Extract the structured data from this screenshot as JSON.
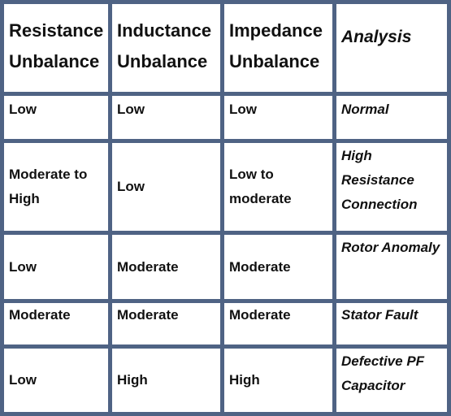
{
  "table": {
    "headers": [
      "Resistance Unbalance",
      "Inductance Unbalance",
      "Impedance Unbalance",
      "Analysis"
    ],
    "rows": [
      [
        "Low",
        "Low",
        "Low",
        "Normal"
      ],
      [
        "Moderate to High",
        "Low",
        "Low to moderate",
        "High Resistance Connection"
      ],
      [
        "Low",
        "Moderate",
        "Moderate",
        "Rotor Anomaly"
      ],
      [
        "Moderate",
        "Moderate",
        "Moderate",
        "Stator Fault"
      ],
      [
        "Low",
        "High",
        "High",
        "Defective PF Capacitor"
      ]
    ]
  },
  "colors": {
    "grid_border": "#4f6384",
    "cell_background": "#ffffff",
    "text": "#111111"
  }
}
